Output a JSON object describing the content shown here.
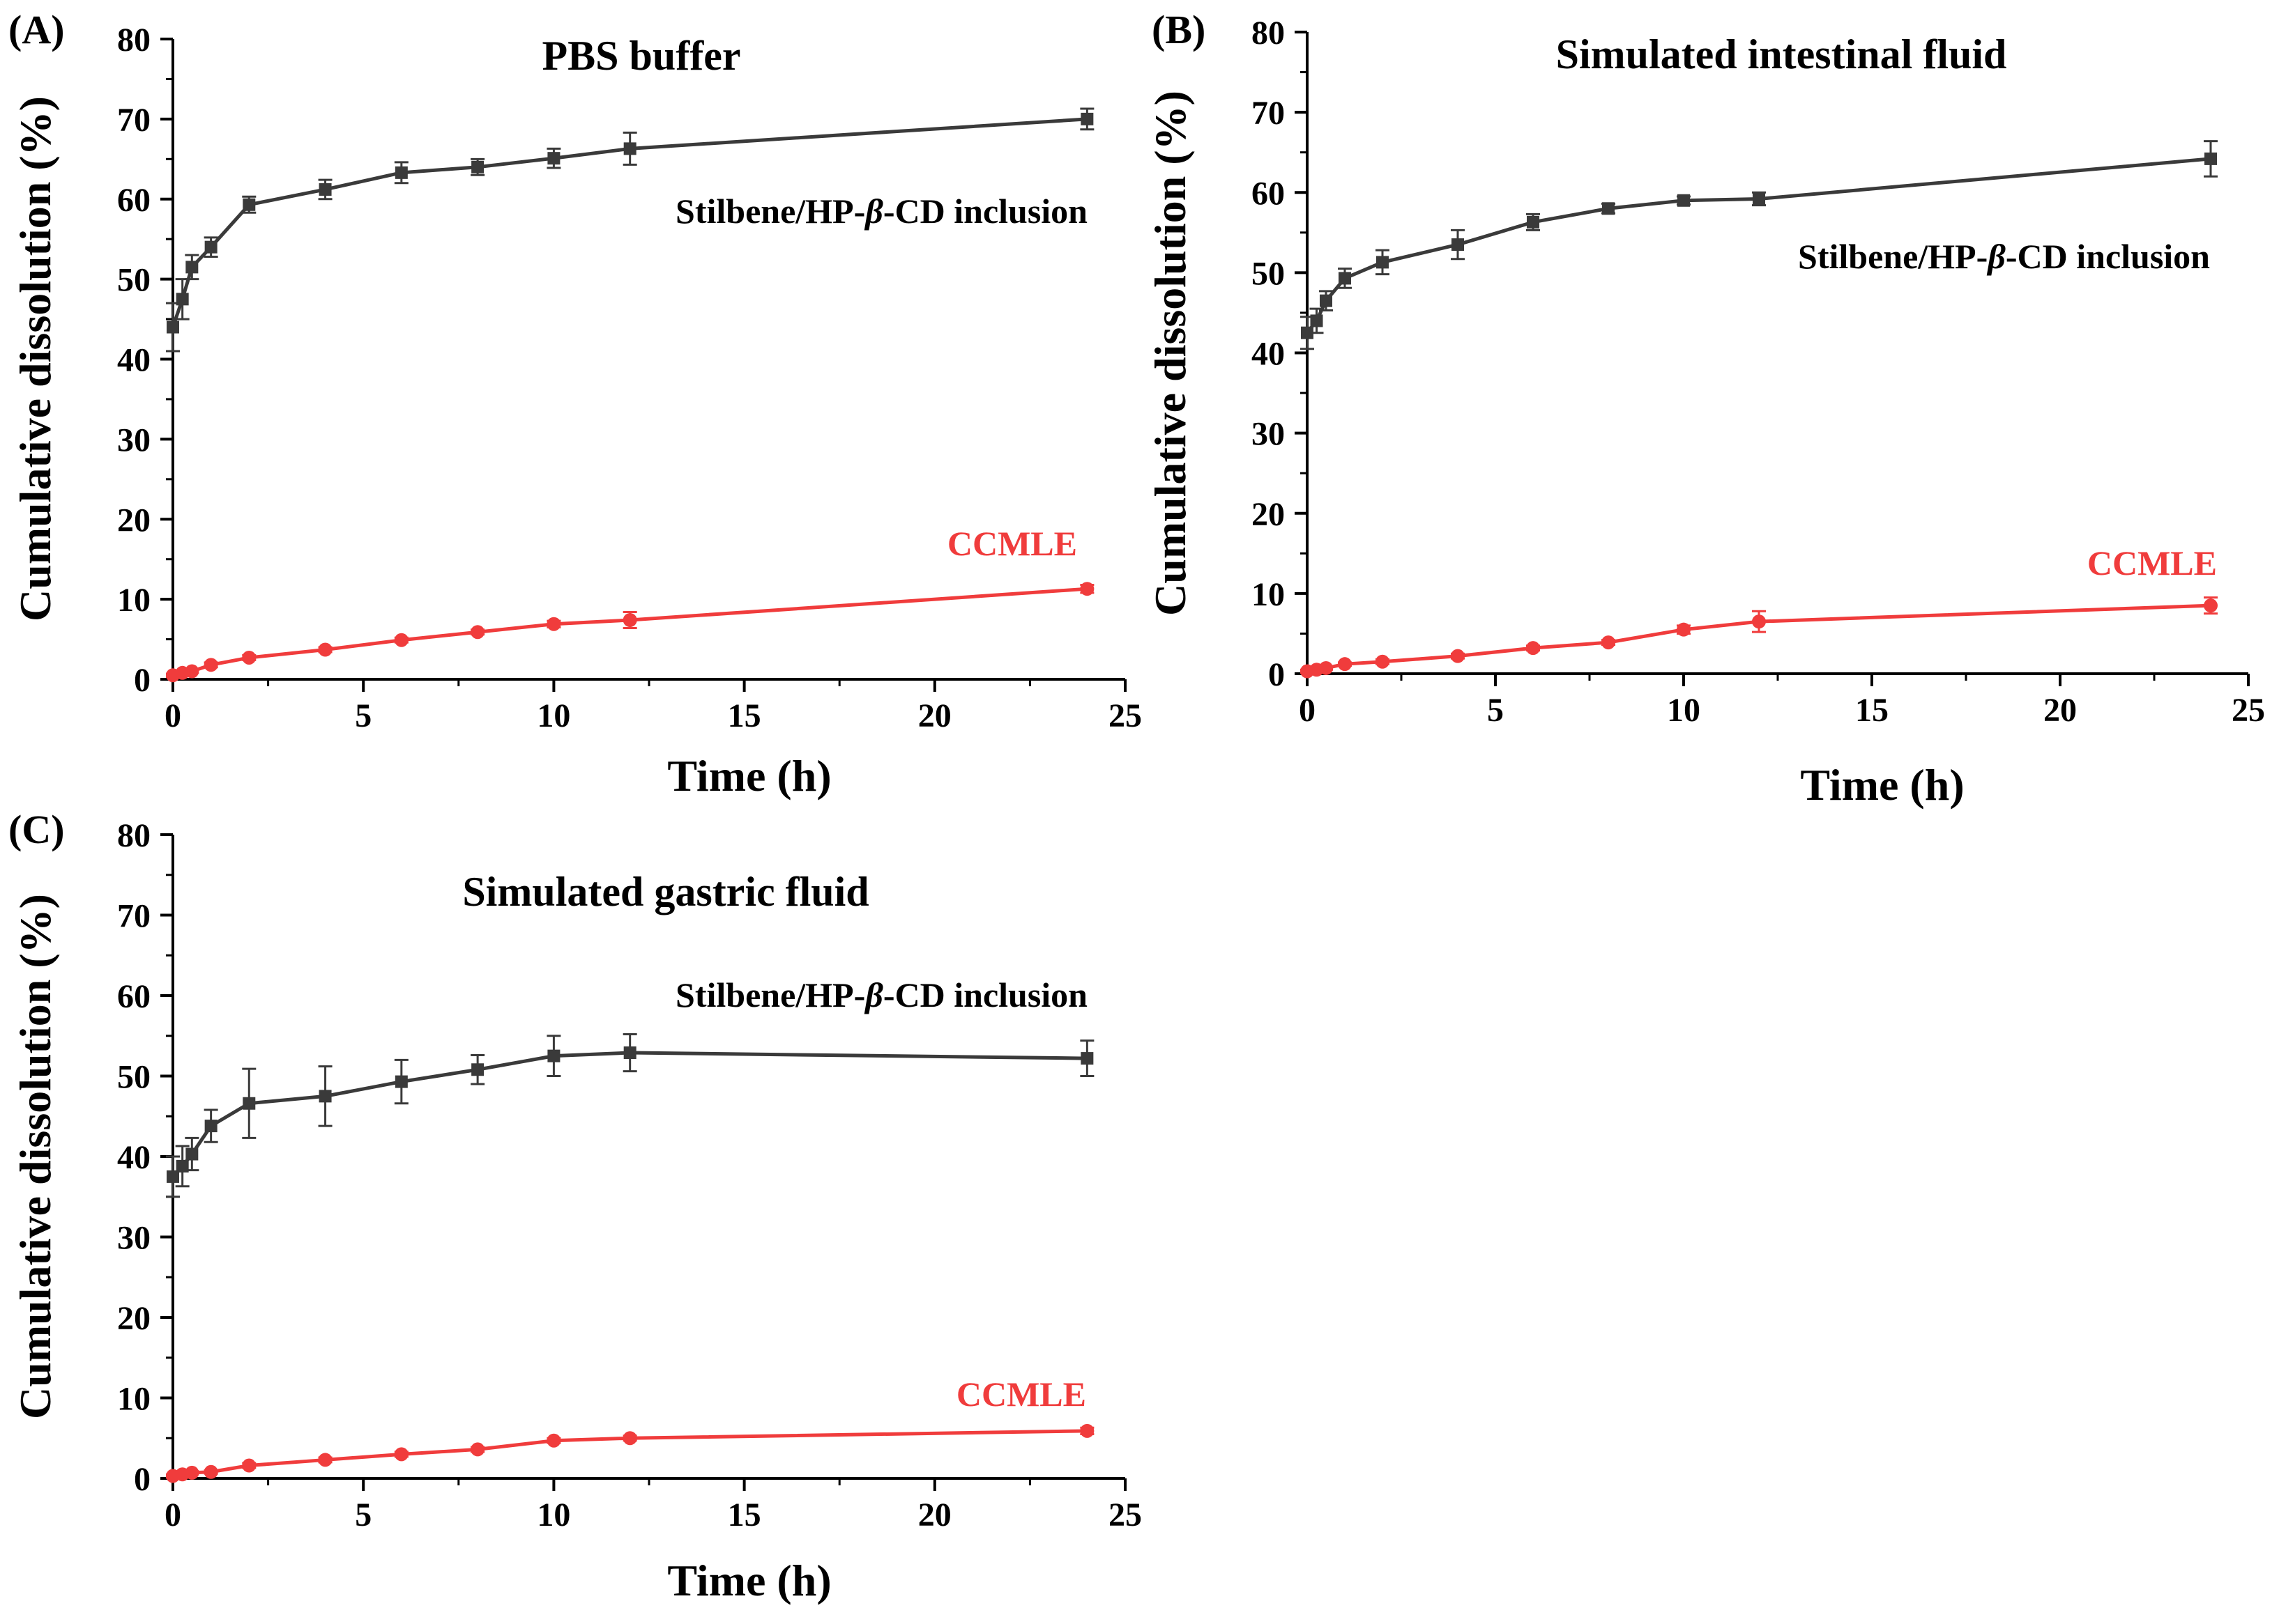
{
  "chart_data": [
    {
      "type": "line",
      "panel": "(A)",
      "title": "PBS buffer",
      "xlabel": "Time (h)",
      "ylabel": "Cumulative dissolution (%)",
      "xlim": [
        0,
        25
      ],
      "ylim": [
        0,
        80
      ],
      "xticks": [
        0,
        5,
        10,
        15,
        20,
        25
      ],
      "yticks": [
        0,
        10,
        20,
        30,
        40,
        50,
        60,
        70,
        80
      ],
      "grid": false,
      "series": [
        {
          "name": "Stilbene/HP-β-CD inclusion",
          "label_parts": [
            "Stilbene/HP-",
            "β",
            "-CD inclusion"
          ],
          "color": "#3a3a3a",
          "marker": "square",
          "x": [
            0,
            0.25,
            0.5,
            1,
            2,
            4,
            6,
            8,
            10,
            12,
            24
          ],
          "y": [
            44,
            47.5,
            51.5,
            54,
            59.3,
            61.2,
            63.3,
            64,
            65.1,
            66.3,
            70
          ],
          "err": [
            3,
            2.5,
            1.5,
            1.2,
            1,
            1.2,
            1.3,
            1,
            1.2,
            2,
            1.3
          ]
        },
        {
          "name": "CCMLE",
          "label_parts": [
            "CCMLE"
          ],
          "color": "#f03c3c",
          "marker": "circle",
          "x": [
            0,
            0.25,
            0.5,
            1,
            2,
            4,
            6,
            8,
            10,
            12,
            24
          ],
          "y": [
            0.5,
            0.8,
            1,
            1.8,
            2.7,
            3.7,
            4.9,
            5.9,
            6.9,
            7.4,
            11.3
          ],
          "err": [
            0.2,
            0.2,
            0.2,
            0.3,
            0.3,
            0.3,
            0.3,
            0.3,
            0.4,
            1,
            0.5
          ]
        }
      ]
    },
    {
      "type": "line",
      "panel": "(B)",
      "title": "Simulated intestinal fluid",
      "xlabel": "Time (h)",
      "ylabel": "Cumulative dissolution (%)",
      "xlim": [
        0,
        25
      ],
      "ylim": [
        0,
        80
      ],
      "xticks": [
        0,
        5,
        10,
        15,
        20,
        25
      ],
      "yticks": [
        0,
        10,
        20,
        30,
        40,
        50,
        60,
        70,
        80
      ],
      "grid": false,
      "series": [
        {
          "name": "Stilbene/HP-β-CD inclusion",
          "label_parts": [
            "Stilbene/HP-",
            "β",
            "-CD inclusion"
          ],
          "color": "#3a3a3a",
          "marker": "square",
          "x": [
            0,
            0.25,
            0.5,
            1,
            2,
            4,
            6,
            8,
            10,
            12,
            24
          ],
          "y": [
            42.5,
            44,
            46.5,
            49.3,
            51.3,
            53.5,
            56.3,
            58,
            59,
            59.2,
            64.2
          ],
          "err": [
            2,
            1.5,
            1.2,
            1.2,
            1.5,
            1.8,
            1,
            0.6,
            0.5,
            0.8,
            2.2
          ]
        },
        {
          "name": "CCMLE",
          "label_parts": [
            "CCMLE"
          ],
          "color": "#f03c3c",
          "marker": "circle",
          "x": [
            0,
            0.25,
            0.5,
            1,
            2,
            4,
            6,
            8,
            10,
            12,
            24
          ],
          "y": [
            0.3,
            0.5,
            0.7,
            1.2,
            1.5,
            2.2,
            3.2,
            3.9,
            5.5,
            6.5,
            8.5
          ],
          "err": [
            0.2,
            0.2,
            0.2,
            0.2,
            0.3,
            0.3,
            0.3,
            0.3,
            0.5,
            1.3,
            1
          ]
        }
      ]
    },
    {
      "type": "line",
      "panel": "(C)",
      "title": "Simulated gastric fluid",
      "xlabel": "Time (h)",
      "ylabel": "Cumulative dissolution (%)",
      "xlim": [
        0,
        25
      ],
      "ylim": [
        0,
        80
      ],
      "xticks": [
        0,
        5,
        10,
        15,
        20,
        25
      ],
      "yticks": [
        0,
        10,
        20,
        30,
        40,
        50,
        60,
        70,
        80
      ],
      "grid": false,
      "series": [
        {
          "name": "Stilbene/HP-β-CD inclusion",
          "label_parts": [
            "Stilbene/HP-",
            "β",
            "-CD inclusion"
          ],
          "color": "#3a3a3a",
          "marker": "square",
          "x": [
            0,
            0.25,
            0.5,
            1,
            2,
            4,
            6,
            8,
            10,
            12,
            24
          ],
          "y": [
            37.5,
            38.8,
            40.3,
            43.8,
            46.6,
            47.5,
            49.3,
            50.8,
            52.5,
            52.9,
            52.2
          ],
          "err": [
            2.5,
            2.5,
            2,
            2,
            4.3,
            3.7,
            2.7,
            1.8,
            2.5,
            2.3,
            2.2
          ]
        },
        {
          "name": "CCMLE",
          "label_parts": [
            "CCMLE"
          ],
          "color": "#f03c3c",
          "marker": "circle",
          "x": [
            0,
            0.25,
            0.5,
            1,
            2,
            4,
            6,
            8,
            10,
            12,
            24
          ],
          "y": [
            0.3,
            0.5,
            0.7,
            0.8,
            1.6,
            2.3,
            3,
            3.6,
            4.7,
            5,
            5.9
          ],
          "err": [
            0.2,
            0.2,
            0.2,
            0.2,
            0.3,
            0.3,
            0.3,
            0.3,
            0.3,
            0.3,
            0.4
          ]
        }
      ]
    }
  ]
}
